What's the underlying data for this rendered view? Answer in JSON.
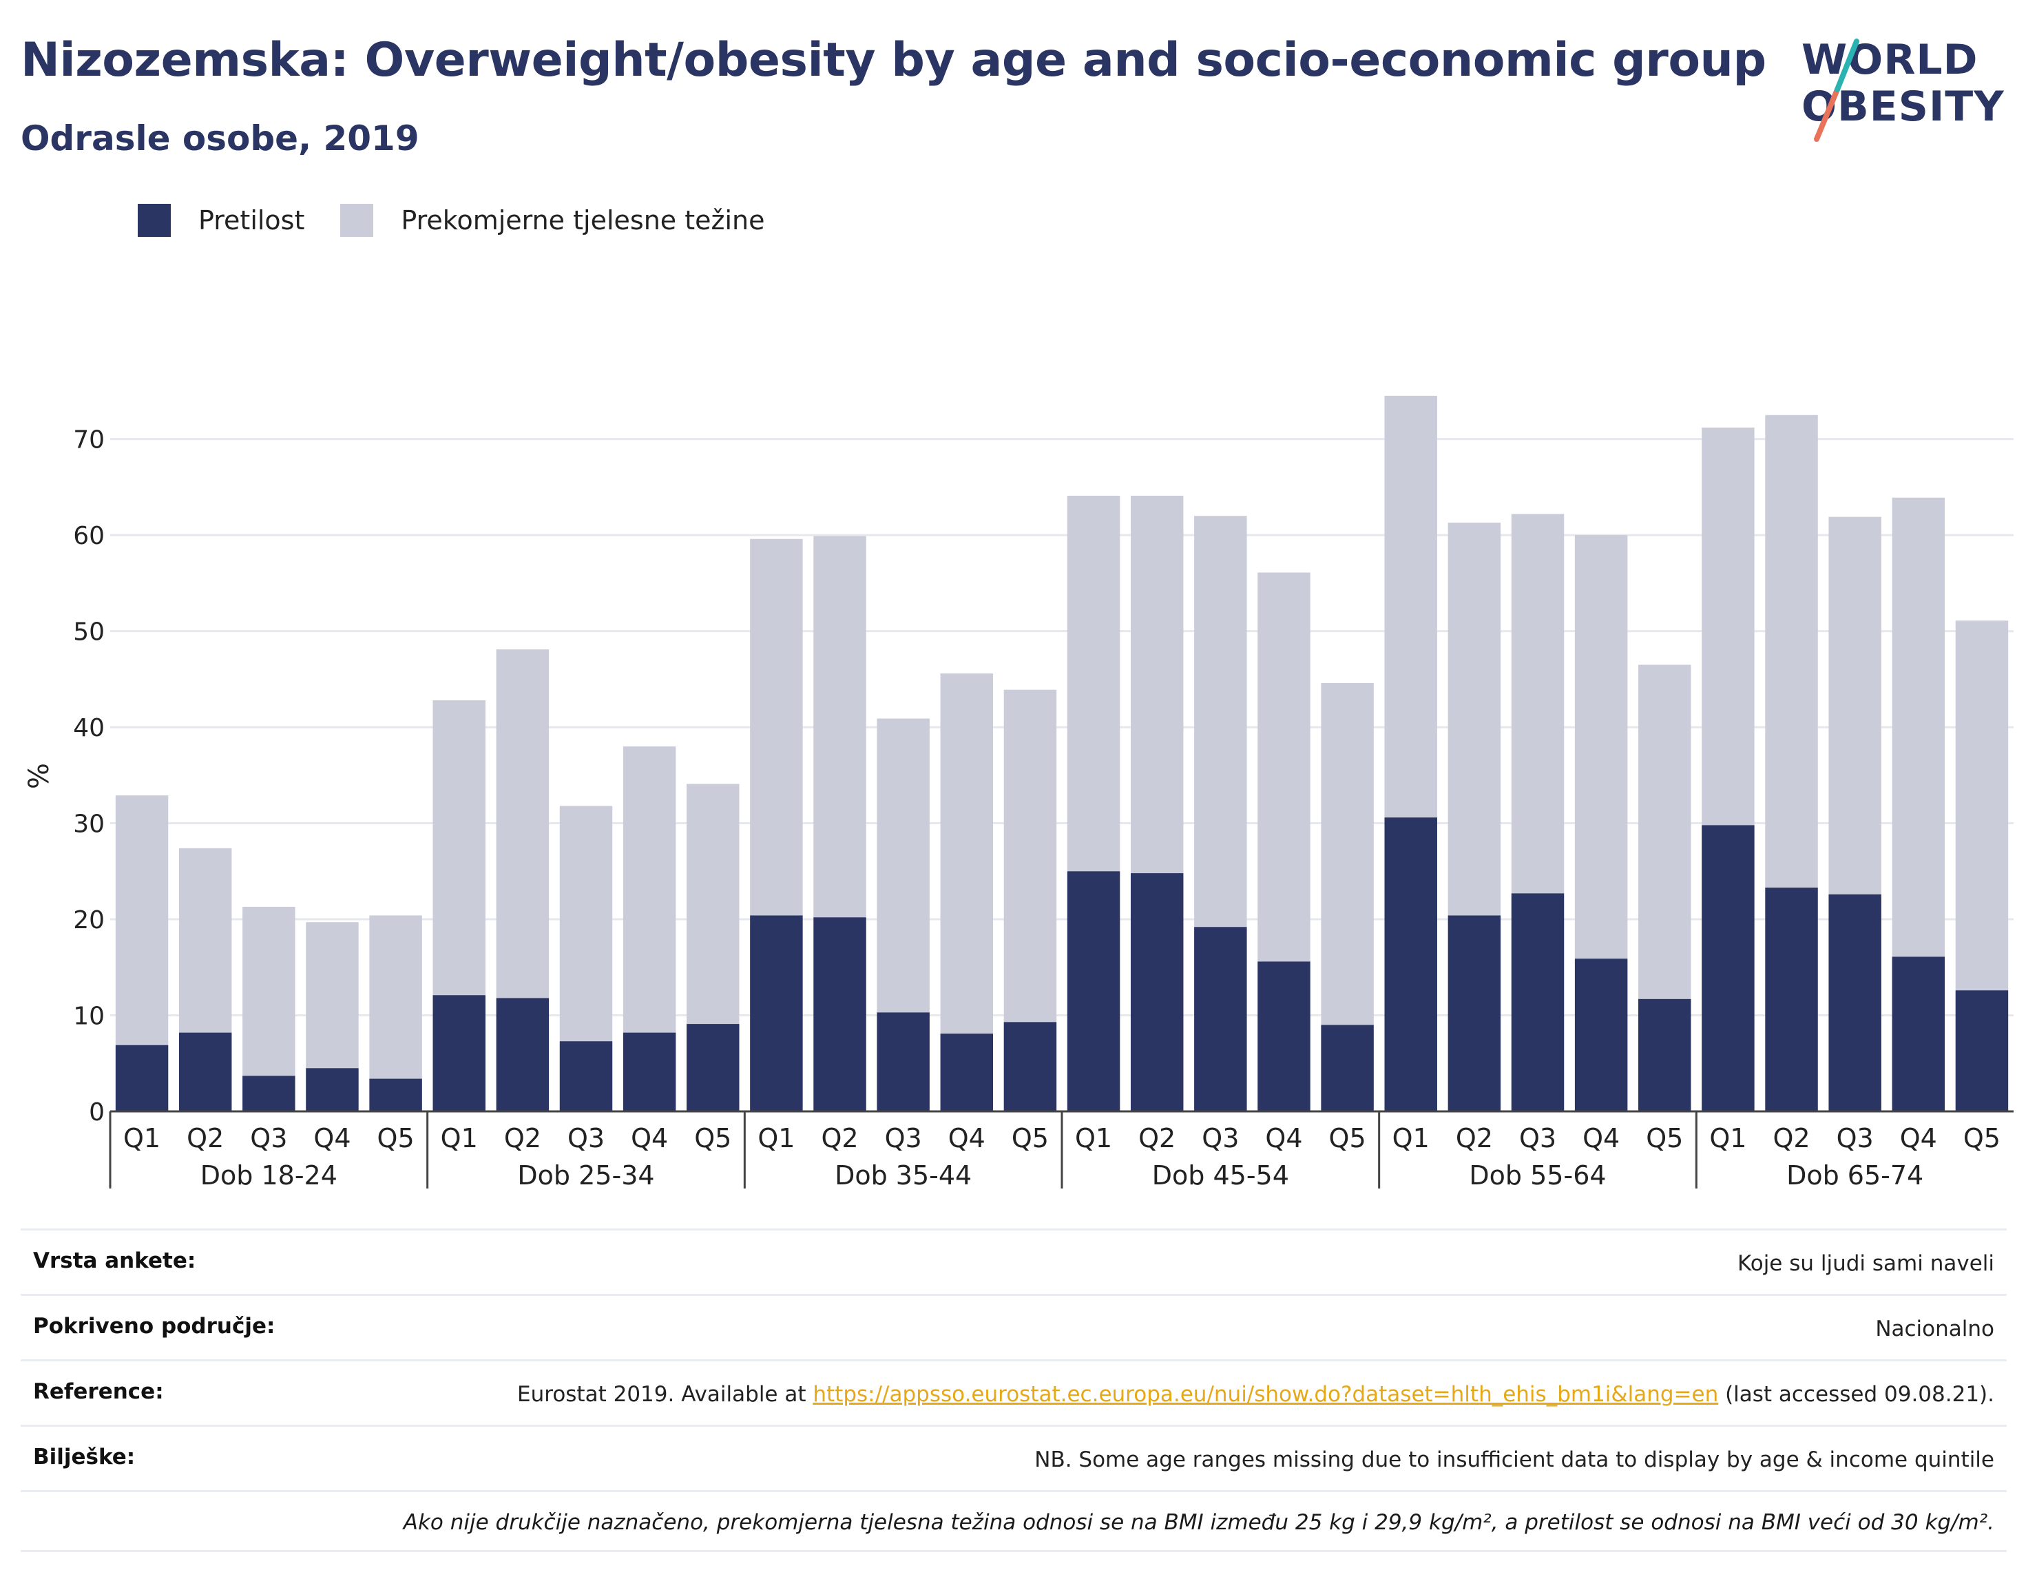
{
  "header": {
    "title": "Nizozemska: Overweight/obesity by age and socio-economic group",
    "subtitle": "Odrasle osobe, 2019"
  },
  "logo": {
    "line1": "WORLD",
    "line2": "OBESITY"
  },
  "legend": {
    "obesity_label": "Pretilost",
    "overweight_label": "Prekomjerne tjelesne težine"
  },
  "colors": {
    "obesity": "#2a3563",
    "overweight": "#cacdd9",
    "grid": "#e6e8ee",
    "link": "#e6a817"
  },
  "chart_data": {
    "type": "bar",
    "stacked": true,
    "ylabel": "%",
    "ylim": [
      0,
      77
    ],
    "yticks": [
      0,
      10,
      20,
      30,
      40,
      50,
      60,
      70
    ],
    "grid": true,
    "legend_position": "top-left",
    "groups": [
      {
        "label": "Dob 18-24",
        "categories": [
          "Q1",
          "Q2",
          "Q3",
          "Q4",
          "Q5"
        ],
        "obesity": [
          6.9,
          8.2,
          3.7,
          4.5,
          3.4
        ],
        "total": [
          32.9,
          27.4,
          21.3,
          19.7,
          20.4
        ]
      },
      {
        "label": "Dob 25-34",
        "categories": [
          "Q1",
          "Q2",
          "Q3",
          "Q4",
          "Q5"
        ],
        "obesity": [
          12.1,
          11.8,
          7.3,
          8.2,
          9.1
        ],
        "total": [
          42.8,
          48.1,
          31.8,
          38.0,
          34.1
        ]
      },
      {
        "label": "Dob 35-44",
        "categories": [
          "Q1",
          "Q2",
          "Q3",
          "Q4",
          "Q5"
        ],
        "obesity": [
          20.4,
          20.2,
          10.3,
          8.1,
          9.3
        ],
        "total": [
          59.6,
          59.9,
          40.9,
          45.6,
          43.9
        ]
      },
      {
        "label": "Dob 45-54",
        "categories": [
          "Q1",
          "Q2",
          "Q3",
          "Q4",
          "Q5"
        ],
        "obesity": [
          25.0,
          24.8,
          19.2,
          15.6,
          9.0
        ],
        "total": [
          64.1,
          64.1,
          62.0,
          56.1,
          44.6
        ]
      },
      {
        "label": "Dob 55-64",
        "categories": [
          "Q1",
          "Q2",
          "Q3",
          "Q4",
          "Q5"
        ],
        "obesity": [
          30.6,
          20.4,
          22.7,
          15.9,
          11.7
        ],
        "total": [
          74.5,
          61.3,
          62.2,
          60.0,
          46.5
        ]
      },
      {
        "label": "Dob 65-74",
        "categories": [
          "Q1",
          "Q2",
          "Q3",
          "Q4",
          "Q5"
        ],
        "obesity": [
          29.8,
          23.3,
          22.6,
          16.1,
          12.6
        ],
        "total": [
          71.2,
          72.5,
          61.9,
          63.9,
          51.1
        ]
      }
    ]
  },
  "meta": {
    "survey_type": {
      "label": "Vrsta ankete:",
      "value": "Koje su ljudi sami naveli"
    },
    "coverage": {
      "label": "Pokriveno područje:",
      "value": "Nacionalno"
    },
    "reference": {
      "label": "Reference:",
      "prefix": "Eurostat 2019. Available at ",
      "link": "https://appsso.eurostat.ec.europa.eu/nui/show.do?dataset=hlth_ehis_bm1i&lang=en",
      "suffix": " (last accessed 09.08.21)."
    },
    "notes": {
      "label": "Bilješke:",
      "value": "NB. Some age ranges missing due to insufficient data to display by age & income quintile"
    },
    "definition": "Ako nije drukčije naznačeno, prekomjerna tjelesna težina odnosi se na BMI između 25 kg i 29,9 kg/m², a pretilost se odnosi na BMI veći od 30 kg/m²."
  }
}
